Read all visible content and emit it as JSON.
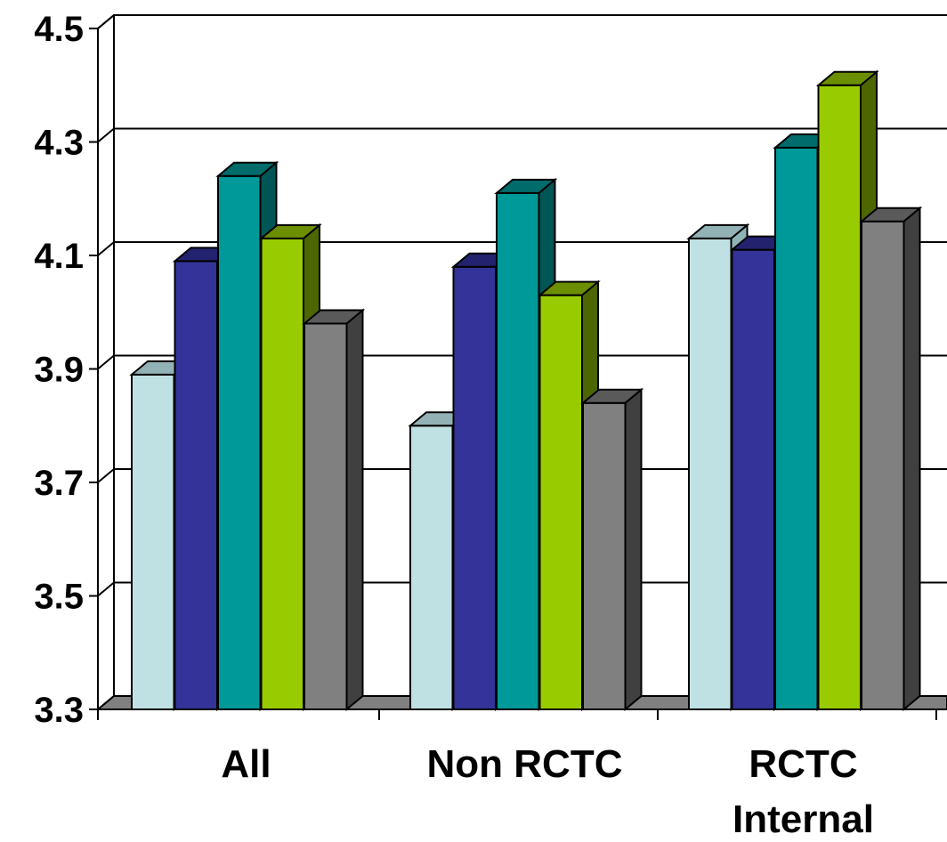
{
  "chart_data": {
    "type": "bar",
    "categories": [
      [
        "All"
      ],
      [
        "Non RCTC"
      ],
      [
        "RCTC",
        "Internal"
      ]
    ],
    "series": [
      {
        "values": [
          3.89,
          3.8,
          4.13
        ],
        "color": "#bfe1e4",
        "side": "#8fb4b8",
        "top": "#93b2b5"
      },
      {
        "values": [
          4.09,
          4.08,
          4.11
        ],
        "color": "#333399",
        "side": "#1c1c66",
        "top": "#22226e"
      },
      {
        "values": [
          4.24,
          4.21,
          4.29
        ],
        "color": "#009999",
        "side": "#005555",
        "top": "#006b6b"
      },
      {
        "values": [
          4.13,
          4.03,
          4.4
        ],
        "color": "#99cc00",
        "side": "#4d6600",
        "top": "#6b8f00"
      },
      {
        "values": [
          3.98,
          3.84,
          4.16
        ],
        "color": "#808080",
        "side": "#404040",
        "top": "#5a5a5a"
      }
    ],
    "yticks": [
      "3.3",
      "3.5",
      "3.7",
      "3.9",
      "4.1",
      "4.3",
      "4.5"
    ],
    "ylim": [
      3.3,
      4.5
    ],
    "grid": true,
    "legend": "none",
    "chart_type_3d": true
  }
}
